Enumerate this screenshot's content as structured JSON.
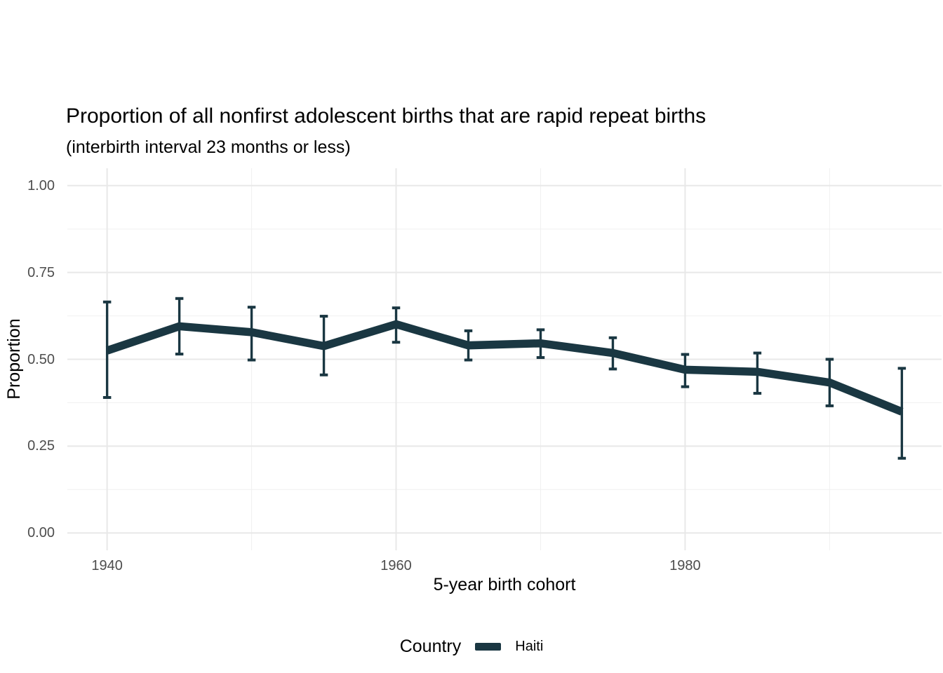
{
  "chart_data": {
    "type": "line",
    "title": "Proportion of all nonfirst adolescent births that are rapid repeat births",
    "subtitle": "(interbirth interval 23 months or less)",
    "xlabel": "5-year birth cohort",
    "ylabel": "Proportion",
    "legend_title": "Country",
    "legend_position": "bottom",
    "grid": true,
    "grid_major_color": "#e8e8e8",
    "grid_minor_color": "#f0f0f0",
    "tick_label_color": "#4d4d4d",
    "xlim": [
      1937.25,
      1997.75
    ],
    "ylim": [
      -0.05,
      1.05
    ],
    "x_major_ticks": [
      1940,
      1960,
      1980
    ],
    "x_tick_labels": [
      "1940",
      "1960",
      "1980"
    ],
    "x_minor_gridlines": [
      1950,
      1970,
      1990
    ],
    "y_major_ticks": [
      0.0,
      0.25,
      0.5,
      0.75,
      1.0
    ],
    "y_tick_labels": [
      "0.00",
      "0.25",
      "0.50",
      "0.75",
      "1.00"
    ],
    "y_minor_gridlines": [
      0.125,
      0.375,
      0.625,
      0.875
    ],
    "series": [
      {
        "name": "Haiti",
        "color": "#1a3742",
        "x": [
          1940,
          1945,
          1950,
          1955,
          1960,
          1965,
          1970,
          1975,
          1980,
          1985,
          1990,
          1995
        ],
        "y": [
          0.525,
          0.595,
          0.578,
          0.538,
          0.601,
          0.54,
          0.546,
          0.518,
          0.47,
          0.464,
          0.433,
          0.349
        ],
        "ci_lower": [
          0.39,
          0.515,
          0.498,
          0.455,
          0.549,
          0.498,
          0.505,
          0.472,
          0.421,
          0.402,
          0.366,
          0.215
        ],
        "ci_upper": [
          0.665,
          0.675,
          0.65,
          0.624,
          0.648,
          0.582,
          0.585,
          0.562,
          0.514,
          0.518,
          0.5,
          0.474
        ]
      }
    ]
  }
}
